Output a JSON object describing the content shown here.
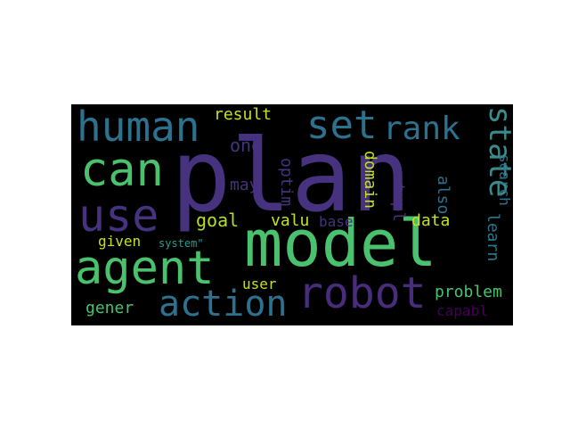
{
  "wordcloud": {
    "words": [
      {
        "text": "plan",
        "color": "#46327e"
      },
      {
        "text": "model",
        "color": "#4ac16d"
      },
      {
        "text": "agent",
        "color": "#4ac16d"
      },
      {
        "text": "robot",
        "color": "#472d7b"
      },
      {
        "text": "human",
        "color": "#2c728e"
      },
      {
        "text": "can",
        "color": "#4ac16d"
      },
      {
        "text": "use",
        "color": "#46327e"
      },
      {
        "text": "action",
        "color": "#2c728e"
      },
      {
        "text": "set",
        "color": "#2c728e"
      },
      {
        "text": "rank",
        "color": "#2c728e"
      },
      {
        "text": "state",
        "color": "#3b8b8c"
      },
      {
        "text": "result",
        "color": "#c6e020"
      },
      {
        "text": "one",
        "color": "#46327e"
      },
      {
        "text": "may",
        "color": "#46327e"
      },
      {
        "text": "goal",
        "color": "#b5de2b"
      },
      {
        "text": "valu",
        "color": "#c6e020"
      },
      {
        "text": "base",
        "color": "#46327e"
      },
      {
        "text": "optim",
        "color": "#46327e"
      },
      {
        "text": "domain",
        "color": "#c6e020"
      },
      {
        "text": "tupl",
        "color": "#46327e"
      },
      {
        "text": "data",
        "color": "#c6e020"
      },
      {
        "text": "also",
        "color": "#2c728e"
      },
      {
        "text": "learn",
        "color": "#2a788e"
      },
      {
        "text": "search",
        "color": "#2c728e"
      },
      {
        "text": "given",
        "color": "#c6e020"
      },
      {
        "text": "system\"",
        "color": "#2a9d8f"
      },
      {
        "text": "user",
        "color": "#c6e020"
      },
      {
        "text": "problem",
        "color": "#4ac16d"
      },
      {
        "text": "gener",
        "color": "#4ac16d"
      },
      {
        "text": "capabl",
        "color": "#440154"
      }
    ]
  }
}
